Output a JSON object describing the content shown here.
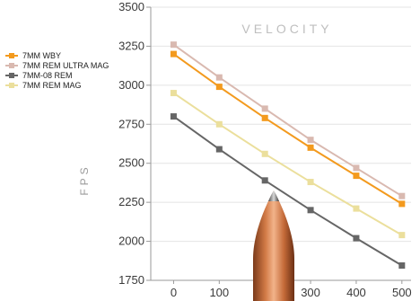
{
  "chart_data": {
    "type": "line",
    "title": "VELOCITY",
    "xlabel": "",
    "ylabel": "FPS",
    "x": [
      0,
      100,
      200,
      300,
      400,
      500
    ],
    "xlim": [
      -50,
      520
    ],
    "ylim": [
      1750,
      3500
    ],
    "x_ticks": [
      "0",
      "100",
      "200",
      "300",
      "400",
      "500"
    ],
    "y_ticks": [
      "1750",
      "2000",
      "2250",
      "2500",
      "2750",
      "3000",
      "3250",
      "3500"
    ],
    "grid": "horizontal",
    "legend_position": "top-left",
    "series": [
      {
        "name": "7MM WBY",
        "color": "#f39a1e",
        "marker": "square",
        "values": [
          3200,
          2990,
          2790,
          2600,
          2420,
          2240
        ]
      },
      {
        "name": "7MM REM ULTRA MAG",
        "color": "#d9b9b0",
        "marker": "square",
        "values": [
          3260,
          3050,
          2850,
          2650,
          2470,
          2290
        ]
      },
      {
        "name": "7MM-08 REM",
        "color": "#666666",
        "marker": "square",
        "values": [
          2800,
          2590,
          2390,
          2200,
          2020,
          1845
        ]
      },
      {
        "name": "7MM REM MAG",
        "color": "#ebdf9c",
        "marker": "square",
        "values": [
          2950,
          2750,
          2560,
          2380,
          2210,
          2040
        ]
      }
    ],
    "decoration": "bullet-image"
  }
}
